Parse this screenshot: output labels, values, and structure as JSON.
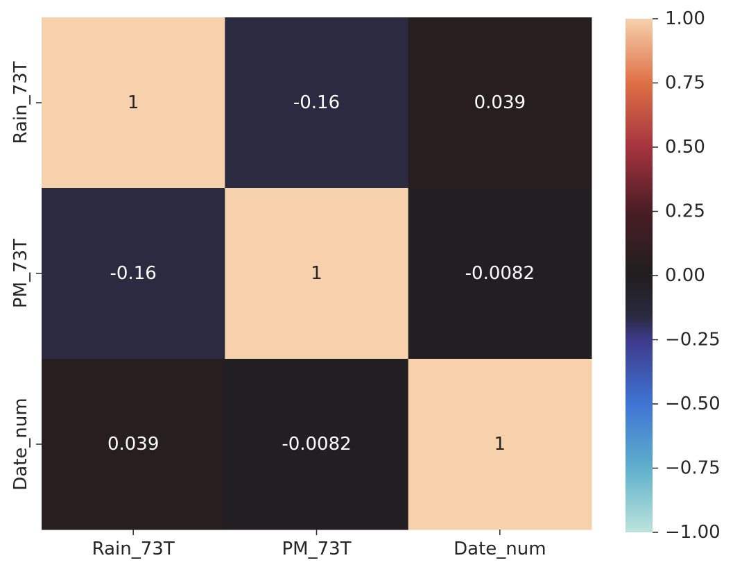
{
  "chart_data": {
    "type": "heatmap",
    "title": "",
    "xlabel": "",
    "ylabel": "",
    "x_categories": [
      "Rain_73T",
      "PM_73T",
      "Date_num"
    ],
    "y_categories": [
      "Rain_73T",
      "PM_73T",
      "Date_num"
    ],
    "values": [
      [
        1,
        -0.16,
        0.039
      ],
      [
        -0.16,
        1,
        -0.0082
      ],
      [
        0.039,
        -0.0082,
        1
      ]
    ],
    "annotations": [
      [
        "1",
        "-0.16",
        "0.039"
      ],
      [
        "-0.16",
        "1",
        "-0.0082"
      ],
      [
        "0.039",
        "-0.0082",
        "1"
      ]
    ],
    "colorbar": {
      "range": [
        -1,
        1
      ],
      "ticks": [
        1.0,
        0.75,
        0.5,
        0.25,
        0.0,
        -0.25,
        -0.5,
        -0.75,
        -1.0
      ],
      "tick_labels": [
        "1.00",
        "0.75",
        "0.50",
        "0.25",
        "0.00",
        "−0.25",
        "−0.50",
        "−0.75",
        "−1.00"
      ],
      "colormap": "icefire",
      "color_stops": [
        {
          "v": -1.0,
          "color": "#bce4da"
        },
        {
          "v": -0.75,
          "color": "#5fb0cc"
        },
        {
          "v": -0.5,
          "color": "#3f74d4"
        },
        {
          "v": -0.25,
          "color": "#3d3a8a"
        },
        {
          "v": -0.16,
          "color": "#2a2a40"
        },
        {
          "v": 0.0,
          "color": "#201e1f"
        },
        {
          "v": 0.25,
          "color": "#4a1d24"
        },
        {
          "v": 0.5,
          "color": "#a5343e"
        },
        {
          "v": 0.75,
          "color": "#de7046"
        },
        {
          "v": 1.0,
          "color": "#f6d1ac"
        }
      ]
    },
    "grid": false,
    "legend": "colorbar-right"
  }
}
